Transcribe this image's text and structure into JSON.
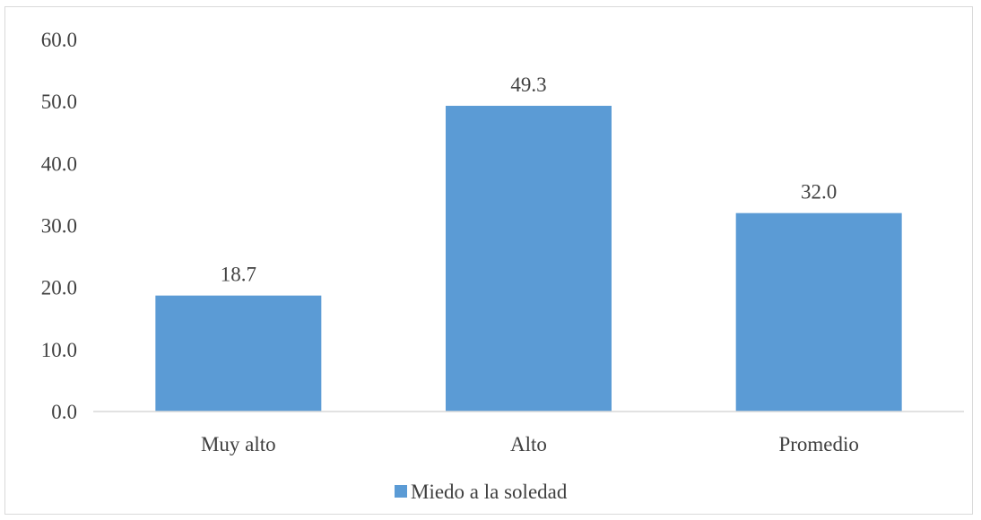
{
  "chart_data": {
    "type": "bar",
    "categories": [
      "Muy alto",
      "Alto",
      "Promedio"
    ],
    "series": [
      {
        "name": "Miedo a la soledad",
        "values": [
          18.7,
          49.3,
          32.0
        ],
        "color": "#5b9bd5"
      }
    ],
    "data_labels": [
      "18.7",
      "49.3",
      "32.0"
    ],
    "ylim": [
      0,
      60
    ],
    "y_ticks": [
      "0.0",
      "10.0",
      "20.0",
      "30.0",
      "40.0",
      "50.0",
      "60.0"
    ],
    "title": "",
    "xlabel": "",
    "ylabel": "",
    "grid": false,
    "legend_position": "bottom"
  }
}
